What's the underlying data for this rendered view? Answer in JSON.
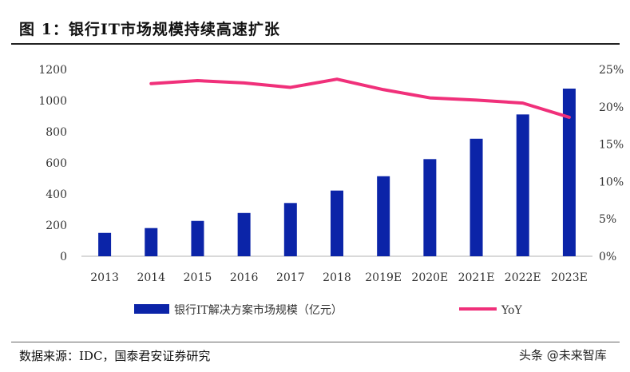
{
  "title": "图 1：银行IT市场规模持续高速扩张",
  "source": "数据来源：IDC，国泰君安证券研究",
  "watermark": "头条 @未来智库",
  "chart_data": {
    "type": "bar+line",
    "categories": [
      "2013",
      "2014",
      "2015",
      "2016",
      "2017",
      "2018",
      "2019E",
      "2020E",
      "2021E",
      "2022E",
      "2023E"
    ],
    "series": [
      {
        "name": "银行IT解决方案市场规模（亿元）",
        "type": "bar",
        "axis": "left",
        "color": "#0b24a8",
        "values": [
          150,
          181,
          227,
          278,
          342,
          422,
          514,
          624,
          755,
          911,
          1077
        ]
      },
      {
        "name": "YoY",
        "type": "line",
        "axis": "right",
        "color": "#f0307a",
        "values": [
          null,
          23.1,
          23.5,
          23.2,
          22.6,
          23.7,
          22.3,
          21.2,
          20.9,
          20.5,
          18.6
        ]
      }
    ],
    "left_axis": {
      "ylim": [
        0,
        1200
      ],
      "ticks": [
        "0",
        "200",
        "400",
        "600",
        "800",
        "1000",
        "1200"
      ]
    },
    "right_axis": {
      "ylim": [
        0,
        25
      ],
      "ticks": [
        "0%",
        "5%",
        "10%",
        "15%",
        "20%",
        "25%"
      ]
    },
    "grid": false,
    "legend": "bottom"
  }
}
